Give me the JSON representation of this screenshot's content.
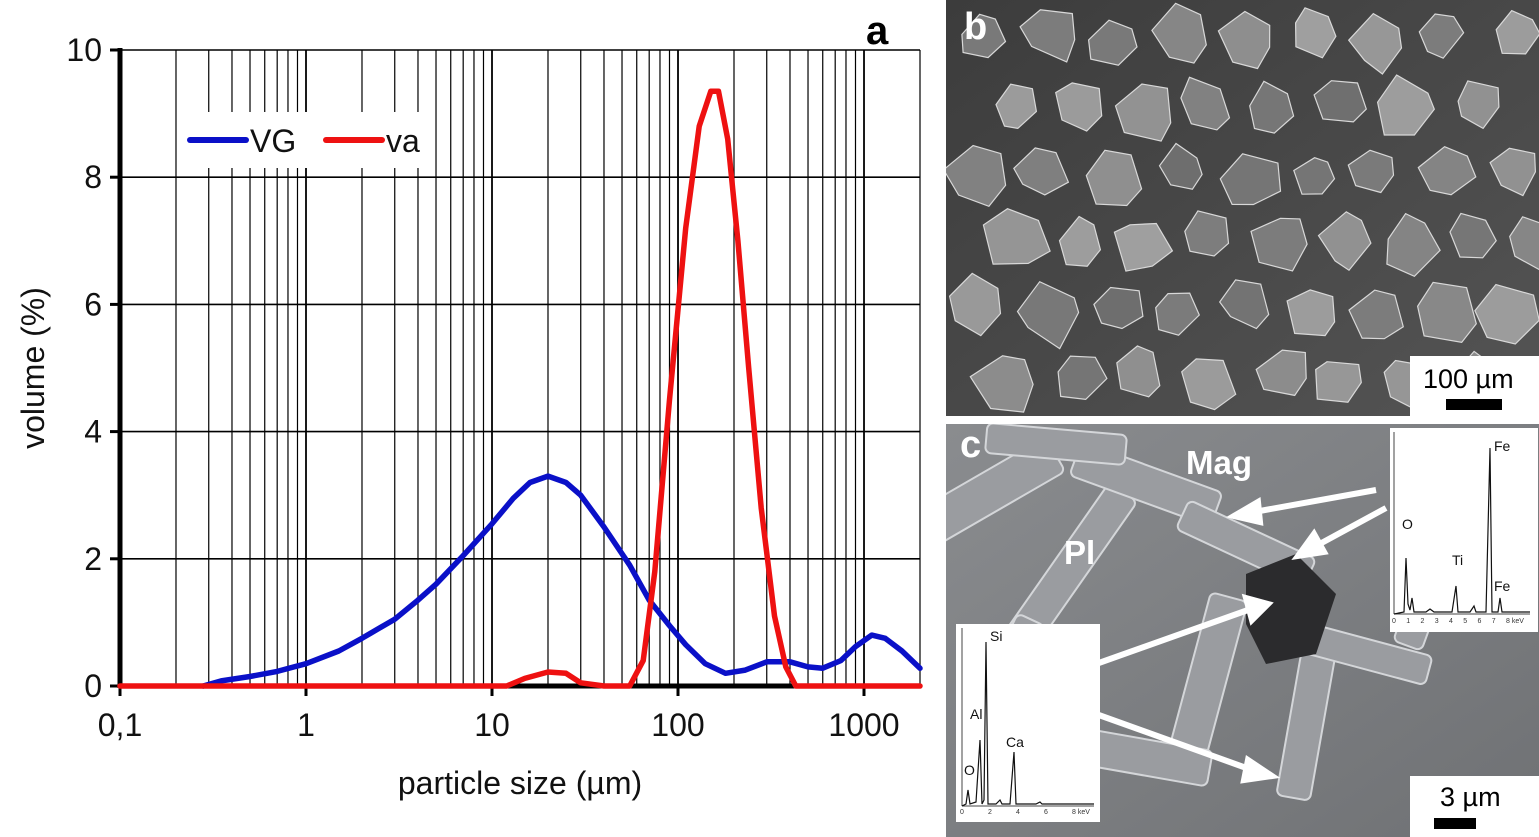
{
  "chart_data": {
    "type": "line",
    "panel_label": "a",
    "xlabel": "particle size (µm)",
    "ylabel": "volume (%)",
    "xscale": "log",
    "xlim": [
      0.1,
      2000
    ],
    "ylim": [
      0,
      10
    ],
    "x_ticks": [
      0.1,
      1,
      10,
      100,
      1000
    ],
    "x_tick_labels": [
      "0,1",
      "1",
      "10",
      "100",
      "1000"
    ],
    "y_ticks": [
      0,
      2,
      4,
      6,
      8,
      10
    ],
    "y_tick_labels": [
      "0",
      "2",
      "4",
      "6",
      "8",
      "10"
    ],
    "grid": true,
    "legend": "top-left",
    "series": [
      {
        "name": "VG",
        "color": "#0a10c8",
        "points": [
          [
            0.28,
            0.0
          ],
          [
            0.35,
            0.08
          ],
          [
            0.5,
            0.15
          ],
          [
            0.7,
            0.23
          ],
          [
            1.0,
            0.35
          ],
          [
            1.5,
            0.55
          ],
          [
            2.0,
            0.75
          ],
          [
            3.0,
            1.05
          ],
          [
            4.0,
            1.35
          ],
          [
            5.0,
            1.6
          ],
          [
            7.0,
            2.05
          ],
          [
            10.0,
            2.55
          ],
          [
            13.0,
            2.95
          ],
          [
            16.0,
            3.2
          ],
          [
            20.0,
            3.3
          ],
          [
            25.0,
            3.2
          ],
          [
            30.0,
            3.0
          ],
          [
            40.0,
            2.5
          ],
          [
            55.0,
            1.9
          ],
          [
            70.0,
            1.35
          ],
          [
            90.0,
            0.95
          ],
          [
            110.0,
            0.65
          ],
          [
            140.0,
            0.35
          ],
          [
            180.0,
            0.2
          ],
          [
            230.0,
            0.25
          ],
          [
            300.0,
            0.38
          ],
          [
            400.0,
            0.38
          ],
          [
            500.0,
            0.3
          ],
          [
            600.0,
            0.28
          ],
          [
            750.0,
            0.4
          ],
          [
            900.0,
            0.62
          ],
          [
            1100.0,
            0.8
          ],
          [
            1300.0,
            0.75
          ],
          [
            1600.0,
            0.55
          ],
          [
            2000.0,
            0.28
          ]
        ]
      },
      {
        "name": "va",
        "color": "#ee1111",
        "points": [
          [
            0.1,
            0.0
          ],
          [
            12.0,
            0.0
          ],
          [
            15.0,
            0.12
          ],
          [
            20.0,
            0.22
          ],
          [
            25.0,
            0.2
          ],
          [
            30.0,
            0.05
          ],
          [
            40.0,
            0.0
          ],
          [
            55.0,
            0.0
          ],
          [
            65.0,
            0.4
          ],
          [
            75.0,
            1.8
          ],
          [
            90.0,
            4.5
          ],
          [
            110.0,
            7.2
          ],
          [
            130.0,
            8.8
          ],
          [
            150.0,
            9.35
          ],
          [
            165.0,
            9.35
          ],
          [
            185.0,
            8.6
          ],
          [
            210.0,
            7.0
          ],
          [
            240.0,
            5.0
          ],
          [
            280.0,
            2.8
          ],
          [
            330.0,
            1.1
          ],
          [
            380.0,
            0.3
          ],
          [
            430.0,
            0.0
          ],
          [
            2000.0,
            0.0
          ]
        ]
      }
    ]
  },
  "panel_b": {
    "label": "b",
    "scale_label": "100 µm"
  },
  "panel_c": {
    "label": "c",
    "mineral_labels": {
      "mag": "Mag",
      "pl": "Pl"
    },
    "scale_label": "3 µm",
    "eds_fe_ti": {
      "peaks": {
        "fe_top": "Fe",
        "o": "O",
        "ti": "Ti",
        "fe_side": "Fe"
      },
      "axis_ticks": [
        "0",
        "1",
        "2",
        "3",
        "4",
        "5",
        "6",
        "7",
        "8 keV"
      ]
    },
    "eds_si_al_ca": {
      "peaks": {
        "si": "Si",
        "al": "Al",
        "ca": "Ca",
        "o": "O"
      },
      "axis_ticks": [
        "0",
        "2",
        "4",
        "6",
        "8 keV"
      ]
    }
  }
}
